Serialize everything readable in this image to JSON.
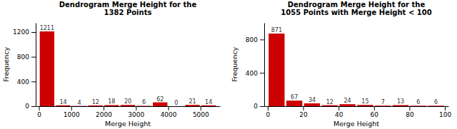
{
  "chart_data": [
    {
      "type": "bar",
      "title": "Dendrogram Merge Height for the\n1382 Points",
      "x_label": "Merge Height",
      "y_label": "Frequency",
      "x": [
        250,
        750,
        1250,
        1750,
        2250,
        2750,
        3250,
        3750,
        4250,
        4750,
        5250
      ],
      "values": [
        1211,
        14,
        4,
        12,
        18,
        20,
        6,
        62,
        0,
        21,
        14
      ],
      "color": "#CC0000",
      "xlim": [
        -100,
        5600
      ],
      "xticks": [
        0,
        1000,
        2000,
        3000,
        4000,
        5000
      ],
      "ylim": [
        0,
        1350
      ],
      "yticks": [
        0,
        400,
        800,
        1200
      ],
      "data_labels": true
    },
    {
      "type": "bar",
      "title": "Dendrogram Merge Height for the\n1055 Points with Merge Height < 100",
      "x_label": "Merge Height",
      "y_label": "Frequency",
      "x": [
        5,
        15,
        25,
        35,
        45,
        55,
        65,
        75,
        85,
        95
      ],
      "values": [
        871,
        67,
        34,
        12,
        24,
        15,
        7,
        13,
        6,
        6
      ],
      "color": "#CC0000",
      "xlim": [
        -2,
        102
      ],
      "xticks": [
        0,
        20,
        40,
        60,
        80,
        100
      ],
      "ylim": [
        0,
        1000
      ],
      "yticks": [
        0,
        400,
        800
      ],
      "data_labels": true
    }
  ]
}
